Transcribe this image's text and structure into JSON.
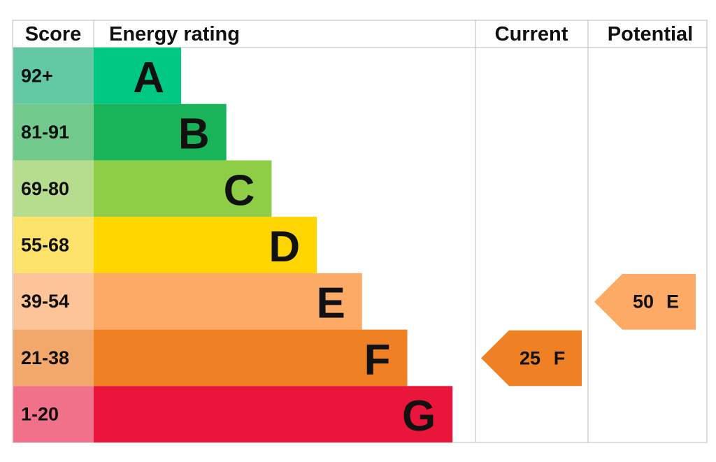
{
  "header": {
    "score": "Score",
    "rating": "Energy rating",
    "current": "Current",
    "potential": "Potential"
  },
  "bands": [
    {
      "score": "92+",
      "letter": "A",
      "color": "#00c781",
      "score_color": "#63c9a5"
    },
    {
      "score": "81-91",
      "letter": "B",
      "color": "#19b459",
      "score_color": "#72c98c"
    },
    {
      "score": "69-80",
      "letter": "C",
      "color": "#8dce46",
      "score_color": "#b6dc8e"
    },
    {
      "score": "55-68",
      "letter": "D",
      "color": "#ffd500",
      "score_color": "#fde36b"
    },
    {
      "score": "39-54",
      "letter": "E",
      "color": "#fcaa65",
      "score_color": "#fdc49a"
    },
    {
      "score": "21-38",
      "letter": "F",
      "color": "#ef8023",
      "score_color": "#f2a86a"
    },
    {
      "score": "1-20",
      "letter": "G",
      "color": "#e9153b",
      "score_color": "#f07189"
    }
  ],
  "current": {
    "value": 25,
    "letter": "F"
  },
  "potential": {
    "value": 50,
    "letter": "E"
  }
}
